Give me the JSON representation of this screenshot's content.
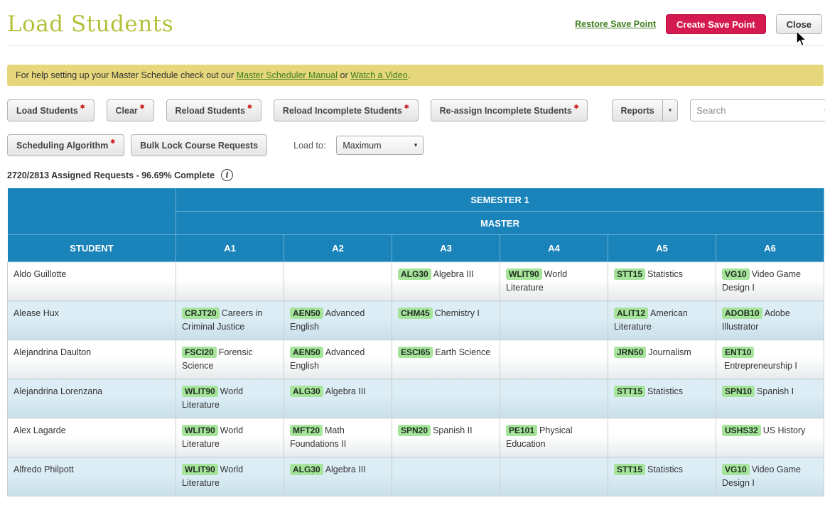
{
  "header": {
    "title": "Load Students",
    "restore_link": "Restore Save Point",
    "create_button": "Create Save Point",
    "close_button": "Close"
  },
  "banner": {
    "text_before": "For help setting up your Master Schedule check out our ",
    "manual_link": "Master Scheduler Manual",
    "text_middle": " or ",
    "video_link": "Watch a Video",
    "text_after": "."
  },
  "toolbar": {
    "buttons_row1": [
      "Load Students",
      "Clear",
      "Reload Students",
      "Reload Incomplete Students",
      "Re-assign Incomplete Students"
    ],
    "reports_label": "Reports",
    "search_placeholder": "Search",
    "scheduling_algorithm": "Scheduling Algorithm",
    "bulk_lock": "Bulk Lock Course Requests",
    "load_to_label": "Load to:",
    "load_to_value": "Maximum"
  },
  "status": {
    "text": "2720/2813 Assigned Requests - 96.69% Complete"
  },
  "icons": {
    "caret_down": "▾",
    "process_marker": "✱",
    "info": "i"
  },
  "colors": {
    "title_green": "#b3c13c",
    "table_header_blue": "#1a84ba",
    "course_badge_green": "#a6e49c",
    "banner_yellow": "#e7d77c",
    "create_button_red": "#d41a50",
    "link_green": "#3e7e1e"
  },
  "table": {
    "semester_header": "SEMESTER 1",
    "master_header": "MASTER",
    "columns": [
      "STUDENT",
      "A1",
      "A2",
      "A3",
      "A4",
      "A5",
      "A6"
    ],
    "rows": [
      {
        "student": "Aldo Guillotte",
        "cells": [
          null,
          null,
          {
            "code": "ALG30",
            "name": "Algebra III"
          },
          {
            "code": "WLIT90",
            "name": "World Literature"
          },
          {
            "code": "STT15",
            "name": "Statistics"
          },
          {
            "code": "VG10",
            "name": "Video Game Design I"
          }
        ]
      },
      {
        "student": "Alease Hux",
        "cells": [
          {
            "code": "CRJT20",
            "name": "Careers in Criminal Justice"
          },
          {
            "code": "AEN50",
            "name": "Advanced English"
          },
          {
            "code": "CHM45",
            "name": "Chemistry I"
          },
          null,
          {
            "code": "ALIT12",
            "name": "American Literature"
          },
          {
            "code": "ADOB10",
            "name": "Adobe Illustrator"
          }
        ]
      },
      {
        "student": "Alejandrina Daulton",
        "cells": [
          {
            "code": "FSCI20",
            "name": "Forensic Science"
          },
          {
            "code": "AEN50",
            "name": "Advanced English"
          },
          {
            "code": "ESCI65",
            "name": "Earth Science"
          },
          null,
          {
            "code": "JRN50",
            "name": "Journalism"
          },
          {
            "code": "ENT10",
            "name": "Entrepreneurship I"
          }
        ]
      },
      {
        "student": "Alejandrina Lorenzana",
        "cells": [
          {
            "code": "WLIT90",
            "name": "World Literature"
          },
          {
            "code": "ALG30",
            "name": "Algebra III"
          },
          null,
          null,
          {
            "code": "STT15",
            "name": "Statistics"
          },
          {
            "code": "SPN10",
            "name": "Spanish I"
          }
        ]
      },
      {
        "student": "Alex Lagarde",
        "cells": [
          {
            "code": "WLIT90",
            "name": "World Literature"
          },
          {
            "code": "MFT20",
            "name": "Math Foundations II"
          },
          {
            "code": "SPN20",
            "name": "Spanish II"
          },
          {
            "code": "PE101",
            "name": "Physical Education"
          },
          null,
          {
            "code": "USHS32",
            "name": "US History"
          }
        ]
      },
      {
        "student": "Alfredo Philpott",
        "cells": [
          {
            "code": "WLIT90",
            "name": "World Literature"
          },
          {
            "code": "ALG30",
            "name": "Algebra III"
          },
          null,
          null,
          {
            "code": "STT15",
            "name": "Statistics"
          },
          {
            "code": "VG10",
            "name": "Video Game Design I"
          }
        ]
      }
    ]
  }
}
